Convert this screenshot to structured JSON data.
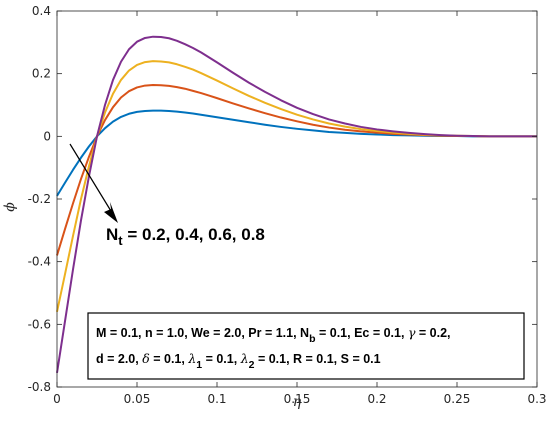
{
  "chart_data": {
    "type": "line",
    "xlabel": "η",
    "ylabel": "ϕ",
    "xlim": [
      0,
      0.3
    ],
    "ylim": [
      -0.8,
      0.4
    ],
    "xticks": [
      "0",
      "0.05",
      "0.1",
      "0.15",
      "0.2",
      "0.25",
      "0.3"
    ],
    "yticks": [
      "0.4",
      "0.2",
      "0",
      "-0.2",
      "-0.4",
      "-0.6",
      "-0.8"
    ],
    "x": [
      0,
      0.005,
      0.01,
      0.015,
      0.02,
      0.025,
      0.03,
      0.035,
      0.04,
      0.045,
      0.05,
      0.055,
      0.06,
      0.065,
      0.07,
      0.075,
      0.08,
      0.085,
      0.09,
      0.095,
      0.1,
      0.11,
      0.12,
      0.13,
      0.14,
      0.15,
      0.16,
      0.17,
      0.18,
      0.19,
      0.2,
      0.21,
      0.22,
      0.23,
      0.24,
      0.25,
      0.26,
      0.27,
      0.28,
      0.29,
      0.3
    ],
    "series": [
      {
        "color": "#0072bd",
        "values": [
          -0.19,
          -0.148,
          -0.107,
          -0.068,
          -0.032,
          0.0,
          0.026,
          0.047,
          0.062,
          0.072,
          0.078,
          0.081,
          0.082,
          0.082,
          0.081,
          0.079,
          0.076,
          0.073,
          0.069,
          0.065,
          0.061,
          0.053,
          0.045,
          0.037,
          0.03,
          0.024,
          0.019,
          0.014,
          0.011,
          0.008,
          0.006,
          0.004,
          0.003,
          0.002,
          0.001,
          0.001,
          0.0,
          0.0,
          0.0,
          0.0,
          0.0
        ]
      },
      {
        "color": "#d95319",
        "values": [
          -0.38,
          -0.296,
          -0.214,
          -0.136,
          -0.065,
          0.0,
          0.052,
          0.093,
          0.124,
          0.144,
          0.156,
          0.162,
          0.164,
          0.163,
          0.161,
          0.157,
          0.152,
          0.145,
          0.138,
          0.13,
          0.122,
          0.105,
          0.089,
          0.074,
          0.06,
          0.048,
          0.037,
          0.028,
          0.021,
          0.016,
          0.012,
          0.008,
          0.006,
          0.004,
          0.002,
          0.001,
          0.001,
          0.0,
          0.0,
          0.0,
          0.0
        ]
      },
      {
        "color": "#edb120",
        "values": [
          -0.56,
          -0.44,
          -0.318,
          -0.2,
          -0.095,
          0.0,
          0.076,
          0.136,
          0.18,
          0.21,
          0.228,
          0.237,
          0.24,
          0.239,
          0.236,
          0.23,
          0.222,
          0.213,
          0.202,
          0.19,
          0.178,
          0.153,
          0.129,
          0.107,
          0.087,
          0.069,
          0.054,
          0.041,
          0.031,
          0.023,
          0.017,
          0.012,
          0.008,
          0.005,
          0.003,
          0.002,
          0.001,
          0.0,
          0.0,
          0.0,
          0.0
        ]
      },
      {
        "color": "#7e2f8e",
        "values": [
          -0.755,
          -0.59,
          -0.425,
          -0.268,
          -0.127,
          0.0,
          0.1,
          0.18,
          0.238,
          0.278,
          0.302,
          0.314,
          0.318,
          0.317,
          0.313,
          0.305,
          0.294,
          0.282,
          0.268,
          0.252,
          0.236,
          0.203,
          0.171,
          0.142,
          0.115,
          0.091,
          0.071,
          0.054,
          0.041,
          0.03,
          0.022,
          0.016,
          0.011,
          0.007,
          0.004,
          0.002,
          0.001,
          0.0,
          0.0,
          0.0,
          0.0
        ]
      }
    ],
    "grid": false,
    "annotations": {
      "nt_label": {
        "main": "N",
        "sub": "t",
        "values": " = 0.2, 0.4, 0.6, 0.8"
      },
      "param_line_1": [
        {
          "t": "M = 0.1, n = 1.0, We = 2.0, Pr = 1.1, N"
        },
        {
          "t": "b",
          "sub": true
        },
        {
          "t": " = 0.1, Ec = 0.1, "
        },
        {
          "t": "γ",
          "sym": true
        },
        {
          "t": " = 0.2,"
        }
      ],
      "param_line_2": [
        {
          "t": "d = 2.0, "
        },
        {
          "t": "δ",
          "sym": true
        },
        {
          "t": " = 0.1, "
        },
        {
          "t": "λ",
          "sym": true
        },
        {
          "t": "1",
          "sub": true
        },
        {
          "t": " = 0.1, "
        },
        {
          "t": "λ",
          "sym": true
        },
        {
          "t": "2",
          "sub": true
        },
        {
          "t": " = 0.1, R = 0.1, S = 0.1"
        }
      ]
    }
  }
}
